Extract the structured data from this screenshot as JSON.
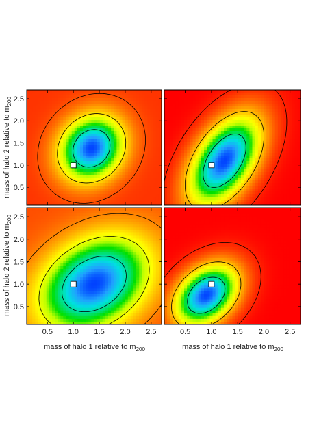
{
  "chart_data": [
    {
      "type": "heatmap",
      "panel": "top-left",
      "xlim": [
        0.1,
        2.7
      ],
      "ylim": [
        0.1,
        2.7
      ],
      "xticks": [
        "0.5",
        "1.0",
        "1.5",
        "2.0",
        "2.5"
      ],
      "yticks": [
        "0.5",
        "1.0",
        "1.5",
        "2.0",
        "2.5"
      ],
      "show_xticks": false,
      "show_yticks": true,
      "peak": {
        "x": 1.35,
        "y": 1.38,
        "sx": 0.42,
        "sy": 0.5,
        "rho": -0.15
      },
      "min_level": 0.08,
      "true_value_marker": {
        "x": 1.0,
        "y": 1.0
      },
      "contour_levels": [
        0.05,
        0.3,
        0.7
      ]
    },
    {
      "type": "heatmap",
      "panel": "top-right",
      "xlim": [
        0.1,
        2.7
      ],
      "ylim": [
        0.1,
        2.7
      ],
      "xticks": [
        "0.5",
        "1.0",
        "1.5",
        "2.0",
        "2.5"
      ],
      "yticks": [
        "0.5",
        "1.0",
        "1.5",
        "2.0",
        "2.5"
      ],
      "show_xticks": false,
      "show_yticks": false,
      "peak": {
        "x": 1.25,
        "y": 1.1,
        "sx": 0.42,
        "sy": 0.62,
        "rho": -0.5
      },
      "min_level": 0.0,
      "true_value_marker": {
        "x": 1.0,
        "y": 1.0
      },
      "contour_levels": [
        0.05,
        0.3,
        0.7
      ]
    },
    {
      "type": "heatmap",
      "panel": "bottom-left",
      "xlim": [
        0.1,
        2.7
      ],
      "ylim": [
        0.1,
        2.7
      ],
      "xticks": [
        "0.5",
        "1.0",
        "1.5",
        "2.0",
        "2.5"
      ],
      "yticks": [
        "0.5",
        "1.0",
        "1.5",
        "2.0",
        "2.5"
      ],
      "show_xticks": true,
      "show_yticks": true,
      "peak": {
        "x": 1.4,
        "y": 1.0,
        "sx": 0.7,
        "sy": 0.7,
        "rho": -0.3
      },
      "min_level": 0.12,
      "true_value_marker": {
        "x": 1.0,
        "y": 1.0
      },
      "contour_levels": [
        0.1,
        0.35,
        0.7
      ]
    },
    {
      "type": "heatmap",
      "panel": "bottom-right",
      "xlim": [
        0.1,
        2.7
      ],
      "ylim": [
        0.1,
        2.7
      ],
      "xticks": [
        "0.5",
        "1.0",
        "1.5",
        "2.0",
        "2.5"
      ],
      "yticks": [
        "0.5",
        "1.0",
        "1.5",
        "2.0",
        "2.5"
      ],
      "show_xticks": true,
      "show_yticks": false,
      "peak": {
        "x": 0.9,
        "y": 0.75,
        "sx": 0.4,
        "sy": 0.45,
        "rho": -0.35
      },
      "min_level": 0.0,
      "true_value_marker": {
        "x": 1.0,
        "y": 1.0
      },
      "contour_levels": [
        0.05,
        0.3,
        0.7
      ]
    }
  ],
  "axes": {
    "xlabel": "mass of halo 1 relative to m",
    "xlabel_sub": "200",
    "ylabel": "mass of halo 2 relative to m",
    "ylabel_sub": "200"
  },
  "colormap": [
    "#ff0000",
    "#ff4000",
    "#ff8000",
    "#ffc000",
    "#ffff00",
    "#c0ff00",
    "#00e000",
    "#00e080",
    "#00e0e0",
    "#20a0ff",
    "#0040ff"
  ]
}
